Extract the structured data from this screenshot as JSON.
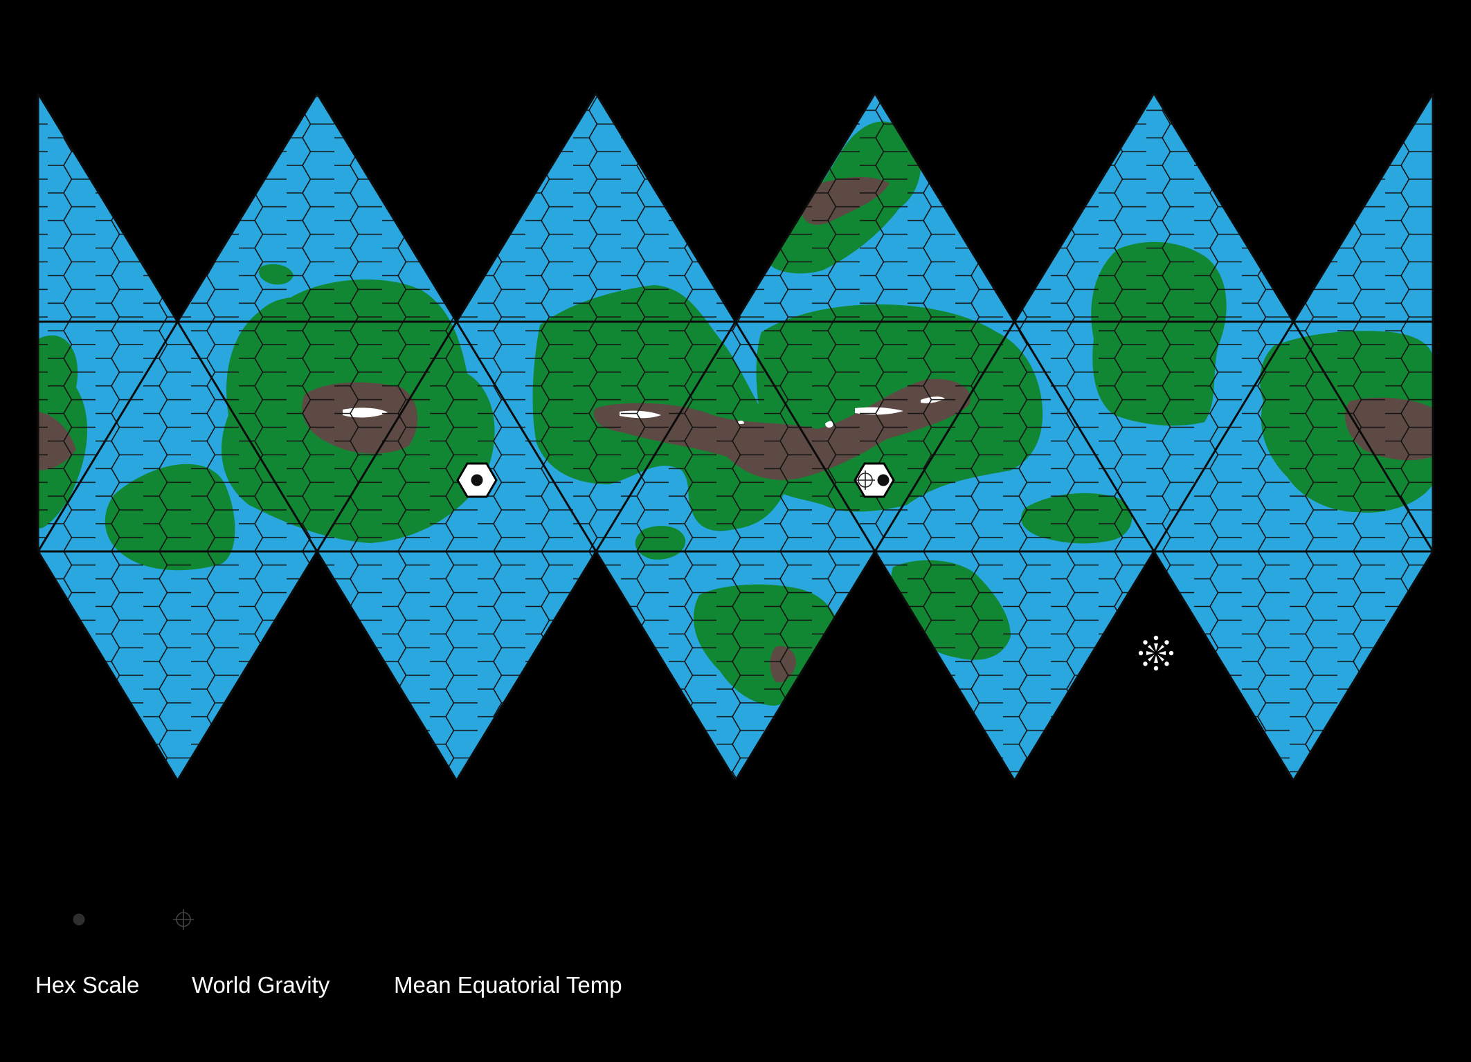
{
  "map": {
    "projection": "icosahedral",
    "faces": 20,
    "colors": {
      "background": "#000000",
      "water": "#2aa7df",
      "land": "#128733",
      "mountain": "#5e4a44",
      "ice": "#ffffff",
      "grid": "#111111"
    },
    "world_hexes": [
      {
        "name": "world-hex-1",
        "symbols": [
          "world-dot"
        ]
      },
      {
        "name": "world-hex-2",
        "symbols": [
          "crosshair",
          "world-dot"
        ]
      }
    ],
    "special_marker": {
      "icon": "starburst-icon"
    }
  },
  "legend": {
    "symbols": [
      {
        "icon": "world-dot-icon"
      },
      {
        "icon": "crosshair-icon"
      }
    ],
    "hex_scale_label": "Hex Scale",
    "world_gravity_label": "World Gravity",
    "mean_temp_label": "Mean Equatorial Temp"
  }
}
